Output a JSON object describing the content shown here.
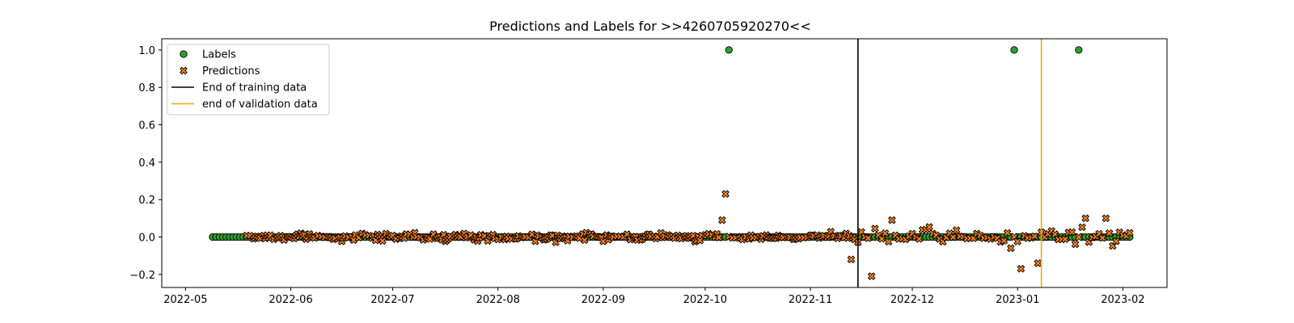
{
  "chart_data": {
    "type": "scatter",
    "title": "Predictions and Labels for >>4260705920270<<",
    "xlabel": "",
    "ylabel": "",
    "x_axis": "date",
    "xlim": [
      "2022-04-24",
      "2023-02-14"
    ],
    "ylim": [
      -0.27,
      1.06
    ],
    "x_ticks": [
      "2022-05",
      "2022-06",
      "2022-07",
      "2022-08",
      "2022-09",
      "2022-10",
      "2022-11",
      "2022-12",
      "2023-01",
      "2023-02"
    ],
    "y_ticks": [
      "−0.2",
      "0.0",
      "0.2",
      "0.4",
      "0.6",
      "0.8",
      "1.0"
    ],
    "grid": false,
    "legend_position": "top-left",
    "series": [
      {
        "name": "Labels",
        "marker": "circle",
        "color": "#2ca02c",
        "edge_color": "#000000",
        "date_range": [
          "2022-05-09",
          "2023-02-03"
        ],
        "default_value": 0.0,
        "nonzero_points": [
          {
            "x": "2022-10-08",
            "y": 1.0
          },
          {
            "x": "2022-12-31",
            "y": 1.0
          },
          {
            "x": "2023-01-19",
            "y": 1.0
          }
        ]
      },
      {
        "name": "Predictions",
        "marker": "x",
        "color": "#ff7f0e",
        "edge_color": "#000000",
        "date_range": [
          "2022-05-19",
          "2023-02-03"
        ],
        "outliers": [
          {
            "x": "2022-10-07",
            "y": 0.23
          },
          {
            "x": "2022-10-06",
            "y": 0.09
          },
          {
            "x": "2022-11-19",
            "y": -0.21
          },
          {
            "x": "2022-11-13",
            "y": -0.12
          },
          {
            "x": "2022-11-25",
            "y": 0.09
          },
          {
            "x": "2023-01-02",
            "y": -0.17
          },
          {
            "x": "2023-01-07",
            "y": -0.14
          },
          {
            "x": "2022-12-30",
            "y": -0.06
          },
          {
            "x": "2023-01-21",
            "y": 0.1
          },
          {
            "x": "2023-01-27",
            "y": 0.1
          }
        ]
      }
    ],
    "vertical_lines": [
      {
        "name": "End of training data",
        "x": "2022-11-15",
        "color": "#000000"
      },
      {
        "name": "end of validation data",
        "x": "2023-01-08",
        "color": "#ffa500"
      }
    ]
  }
}
